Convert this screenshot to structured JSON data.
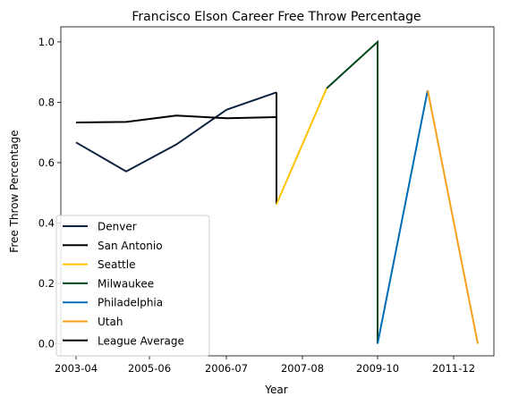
{
  "chart_data": {
    "type": "line",
    "title": "Francisco Elson Career Free Throw Percentage",
    "xlabel": "Year",
    "ylabel": "Free Throw Percentage",
    "x_ticks": [
      "2003-04",
      "2005-06",
      "2006-07",
      "2007-08",
      "2009-10",
      "2011-12"
    ],
    "y_ticks": [
      "0.0",
      "0.2",
      "0.4",
      "0.6",
      "0.8",
      "1.0"
    ],
    "ylim": [
      -0.04,
      1.05
    ],
    "grid": false,
    "legend_position": "lower-left",
    "series": [
      {
        "name": "Denver",
        "color": "#0e2240",
        "points": [
          [
            "2003-04",
            0.667
          ],
          [
            "2004-05",
            0.571
          ],
          [
            "2005-06",
            0.66
          ],
          [
            "2006-07",
            0.775
          ],
          [
            "2007-08",
            0.833
          ]
        ]
      },
      {
        "name": "San Antonio",
        "color": "#000000",
        "points": [
          [
            "2007-08",
            0.833
          ],
          [
            "2007-08",
            0.462
          ]
        ]
      },
      {
        "name": "Seattle",
        "color": "#ffc200",
        "points": [
          [
            "2007-08",
            0.462
          ],
          [
            "2008-09",
            0.846
          ]
        ]
      },
      {
        "name": "Milwaukee",
        "color": "#00471b",
        "points": [
          [
            "2008-09",
            0.846
          ],
          [
            "2009-10",
            1.0
          ],
          [
            "2009-10",
            0.0
          ]
        ]
      },
      {
        "name": "Philadelphia",
        "color": "#006bb6",
        "points": [
          [
            "2009-10",
            0.0
          ],
          [
            "2010-11",
            0.84
          ]
        ]
      },
      {
        "name": "Utah",
        "color": "#f9a01b",
        "points": [
          [
            "2010-11",
            0.84
          ],
          [
            "2011-12",
            0.0
          ]
        ]
      },
      {
        "name": "League Average",
        "color": "#000000",
        "points": [
          [
            "2003-04",
            0.733
          ],
          [
            "2004-05",
            0.735
          ],
          [
            "2005-06",
            0.756
          ],
          [
            "2006-07",
            0.747
          ],
          [
            "2007-08",
            0.751
          ]
        ]
      }
    ]
  }
}
